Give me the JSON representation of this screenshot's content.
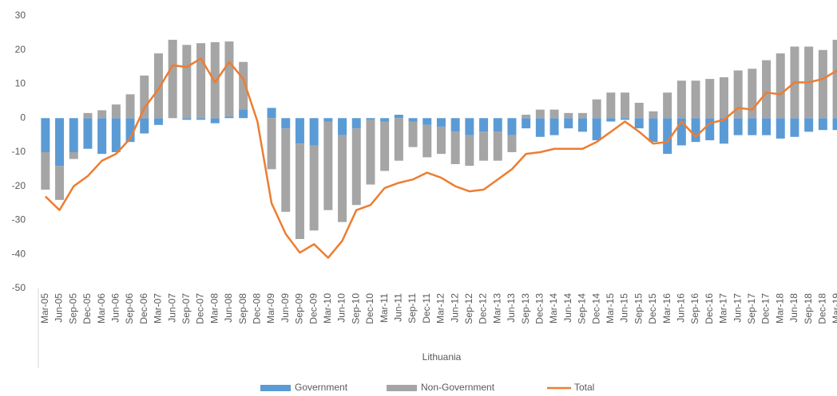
{
  "chart_data": {
    "type": "bar_line",
    "x_label": "Lithuania",
    "categories": [
      "Mar-05",
      "Jun-05",
      "Sep-05",
      "Dec-05",
      "Mar-06",
      "Jun-06",
      "Sep-06",
      "Dec-06",
      "Mar-07",
      "Jun-07",
      "Sep-07",
      "Dec-07",
      "Mar-08",
      "Jun-08",
      "Sep-08",
      "Dec-08",
      "Mar-09",
      "Jun-09",
      "Sep-09",
      "Dec-09",
      "Mar-10",
      "Jun-10",
      "Sep-10",
      "Dec-10",
      "Mar-11",
      "Jun-11",
      "Sep-11",
      "Dec-11",
      "Mar-12",
      "Jun-12",
      "Sep-12",
      "Dec-12",
      "Mar-13",
      "Jun-13",
      "Sep-13",
      "Dec-13",
      "Mar-14",
      "Jun-14",
      "Sep-14",
      "Dec-14",
      "Mar-15",
      "Jun-15",
      "Sep-15",
      "Dec-15",
      "Mar-16",
      "Jun-16",
      "Sep-16",
      "Dec-16",
      "Mar-17",
      "Jun-17",
      "Sep-17",
      "Dec-17",
      "Mar-18",
      "Jun-18",
      "Sep-18",
      "Dec-18",
      "Mar-19"
    ],
    "series": [
      {
        "name": "Government",
        "type": "bar",
        "color": "#5b9bd5",
        "values": [
          -10,
          -14,
          -10,
          -9,
          -10.5,
          -10,
          -7,
          -4.5,
          -2,
          0,
          -0.5,
          -0.5,
          -1.5,
          0.5,
          2.5,
          0,
          3,
          -3,
          -7.5,
          -8,
          -1,
          -5,
          -3,
          -0.5,
          -1,
          1,
          -1,
          -2,
          -2.5,
          -4,
          -5,
          -4,
          -4,
          -5,
          -3,
          -5.5,
          -5,
          -3,
          -4,
          -6.5,
          -1,
          -0.5,
          -3,
          -7,
          -10.5,
          -8,
          -7,
          -6.5,
          -7.5,
          -5,
          -5,
          -5,
          -6,
          -5.5,
          -4,
          -3.5,
          -3.5
        ]
      },
      {
        "name": "Non-Government",
        "type": "bar",
        "color": "#a5a5a5",
        "values": [
          -11,
          -10,
          -2,
          1.5,
          2.3,
          4,
          7,
          12.5,
          19,
          23,
          21.5,
          22,
          22.3,
          22,
          14,
          0,
          -15,
          -24.5,
          -28,
          -25,
          -26,
          -25.5,
          -22.5,
          -19,
          -14.5,
          -12.5,
          -7.5,
          -9.5,
          -8,
          -9.5,
          -9,
          -8.5,
          -8.5,
          -5,
          1,
          2.5,
          2.5,
          1.5,
          1.5,
          5.5,
          7.5,
          7.5,
          4.5,
          2,
          7.5,
          11,
          11,
          11.5,
          12,
          14,
          14.5,
          17,
          19,
          21,
          21,
          20,
          23
        ]
      },
      {
        "name": "Total",
        "type": "line",
        "color": "#ed7d31",
        "values": [
          -23,
          -27,
          -20,
          -17,
          -12.5,
          -10.5,
          -6,
          3,
          8.5,
          15.5,
          15,
          17.5,
          10.5,
          16.5,
          11.5,
          -1,
          -25,
          -34,
          -39.5,
          -37,
          -41,
          -36,
          -27,
          -25.5,
          -20.5,
          -19,
          -18,
          -16,
          -17.5,
          -20,
          -21.5,
          -21,
          -18,
          -15,
          -10.5,
          -10,
          -9,
          -9,
          -9,
          -7,
          -4,
          -1,
          -4,
          -7.5,
          -7,
          -1,
          -5.5,
          -1.5,
          -0.5,
          3,
          2.5,
          7.5,
          7,
          10.5,
          10.5,
          11.5,
          14
        ]
      }
    ],
    "ylim": [
      -50,
      30
    ],
    "yticks": [
      -50,
      -40,
      -30,
      -20,
      -10,
      0,
      10,
      20,
      30
    ],
    "grid": false
  }
}
